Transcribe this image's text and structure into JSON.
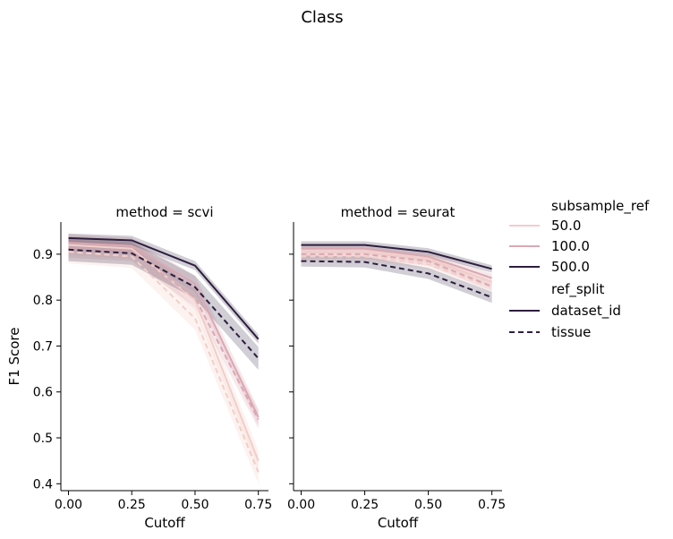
{
  "figure_title": "Class",
  "colors": {
    "50.0": "#f2cec9",
    "100.0": "#dba8b2",
    "500.0": "#2d1e3e"
  },
  "legend": {
    "hue_title": "subsample_ref",
    "hue_items": [
      "50.0",
      "100.0",
      "500.0"
    ],
    "style_title": "ref_split",
    "style_items": [
      "dataset_id",
      "tissue"
    ]
  },
  "chart_data": [
    {
      "type": "line",
      "title": "method = scvi",
      "xlabel": "Cutoff",
      "ylabel": "F1 Score",
      "x": [
        0.0,
        0.25,
        0.5,
        0.75
      ],
      "xlim": [
        -0.03,
        0.79
      ],
      "ylim": [
        0.385,
        0.97
      ],
      "xticks": [
        "0.00",
        "0.25",
        "0.50",
        "0.75"
      ],
      "yticks": [
        "0.4",
        "0.5",
        "0.6",
        "0.7",
        "0.8",
        "0.9"
      ],
      "series": [
        {
          "subsample_ref": "50.0",
          "ref_split": "dataset_id",
          "values": [
            0.92,
            0.912,
            0.8,
            0.45
          ],
          "ci": 0.022
        },
        {
          "subsample_ref": "50.0",
          "ref_split": "tissue",
          "values": [
            0.905,
            0.895,
            0.76,
            0.425
          ],
          "ci": 0.025
        },
        {
          "subsample_ref": "100.0",
          "ref_split": "dataset_id",
          "values": [
            0.925,
            0.918,
            0.835,
            0.545
          ],
          "ci": 0.018
        },
        {
          "subsample_ref": "100.0",
          "ref_split": "tissue",
          "values": [
            0.912,
            0.905,
            0.805,
            0.54
          ],
          "ci": 0.02
        },
        {
          "subsample_ref": "500.0",
          "ref_split": "dataset_id",
          "values": [
            0.935,
            0.93,
            0.875,
            0.715
          ],
          "ci": 0.01
        },
        {
          "subsample_ref": "500.0",
          "ref_split": "tissue",
          "values": [
            0.91,
            0.902,
            0.828,
            0.673
          ],
          "ci": 0.025
        }
      ]
    },
    {
      "type": "line",
      "title": "method = seurat",
      "xlabel": "Cutoff",
      "ylabel": "",
      "x": [
        0.0,
        0.25,
        0.5,
        0.75
      ],
      "xlim": [
        -0.03,
        0.79
      ],
      "ylim": [
        0.385,
        0.97
      ],
      "xticks": [
        "0.00",
        "0.25",
        "0.50",
        "0.75"
      ],
      "yticks": [],
      "series": [
        {
          "subsample_ref": "50.0",
          "ref_split": "dataset_id",
          "values": [
            0.905,
            0.905,
            0.89,
            0.84
          ],
          "ci": 0.01
        },
        {
          "subsample_ref": "50.0",
          "ref_split": "tissue",
          "values": [
            0.895,
            0.895,
            0.878,
            0.828
          ],
          "ci": 0.01
        },
        {
          "subsample_ref": "100.0",
          "ref_split": "dataset_id",
          "values": [
            0.912,
            0.912,
            0.895,
            0.848
          ],
          "ci": 0.01
        },
        {
          "subsample_ref": "100.0",
          "ref_split": "tissue",
          "values": [
            0.9,
            0.9,
            0.885,
            0.83
          ],
          "ci": 0.01
        },
        {
          "subsample_ref": "500.0",
          "ref_split": "dataset_id",
          "values": [
            0.92,
            0.92,
            0.905,
            0.868
          ],
          "ci": 0.008
        },
        {
          "subsample_ref": "500.0",
          "ref_split": "tissue",
          "values": [
            0.885,
            0.883,
            0.858,
            0.806
          ],
          "ci": 0.012
        }
      ]
    }
  ]
}
